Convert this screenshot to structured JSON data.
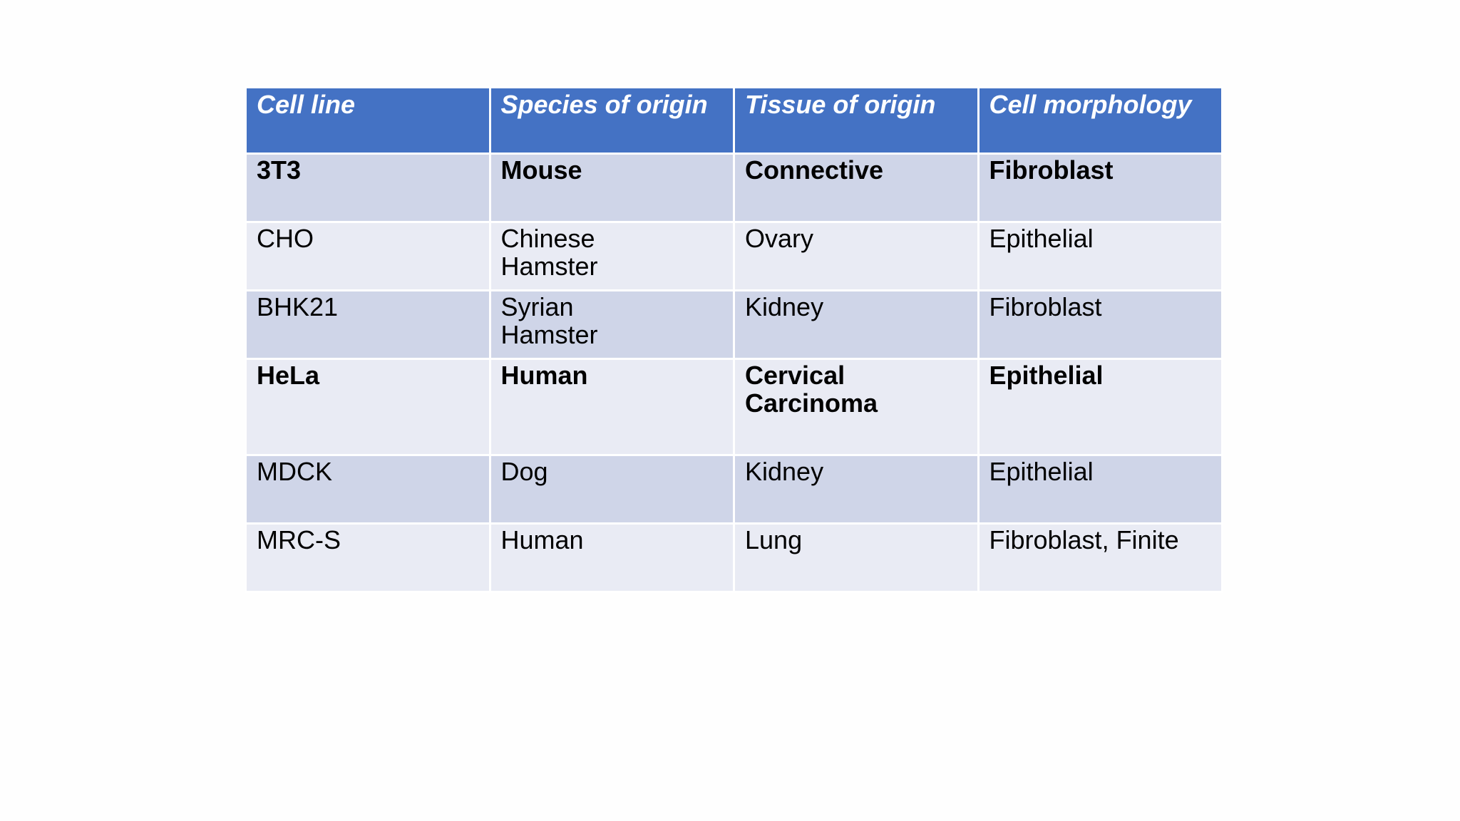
{
  "table": {
    "headers": [
      "Cell  line",
      "Species of origin",
      "Tissue of origin",
      "Cell morphology"
    ],
    "rows": [
      {
        "cells": [
          "3T3",
          "Mouse",
          "Connective",
          "Fibroblast"
        ],
        "bold": true
      },
      {
        "cells": [
          "CHO",
          "Chinese\nHamster",
          "Ovary",
          "Epithelial"
        ],
        "bold": false
      },
      {
        "cells": [
          "BHK21",
          "Syrian\nHamster",
          "Kidney",
          "Fibroblast"
        ],
        "bold": false
      },
      {
        "cells": [
          "HeLa",
          "Human",
          "Cervical\nCarcinoma",
          "Epithelial"
        ],
        "bold": true
      },
      {
        "cells": [
          "MDCK",
          "Dog",
          "Kidney",
          "Epithelial"
        ],
        "bold": false
      },
      {
        "cells": [
          "MRC-S",
          "Human",
          "Lung",
          "Fibroblast, Finite"
        ],
        "bold": false
      }
    ]
  },
  "colors": {
    "header_bg": "#4472c4",
    "row_band_dark": "#cfd5e8",
    "row_band_light": "#e9ebf4"
  }
}
